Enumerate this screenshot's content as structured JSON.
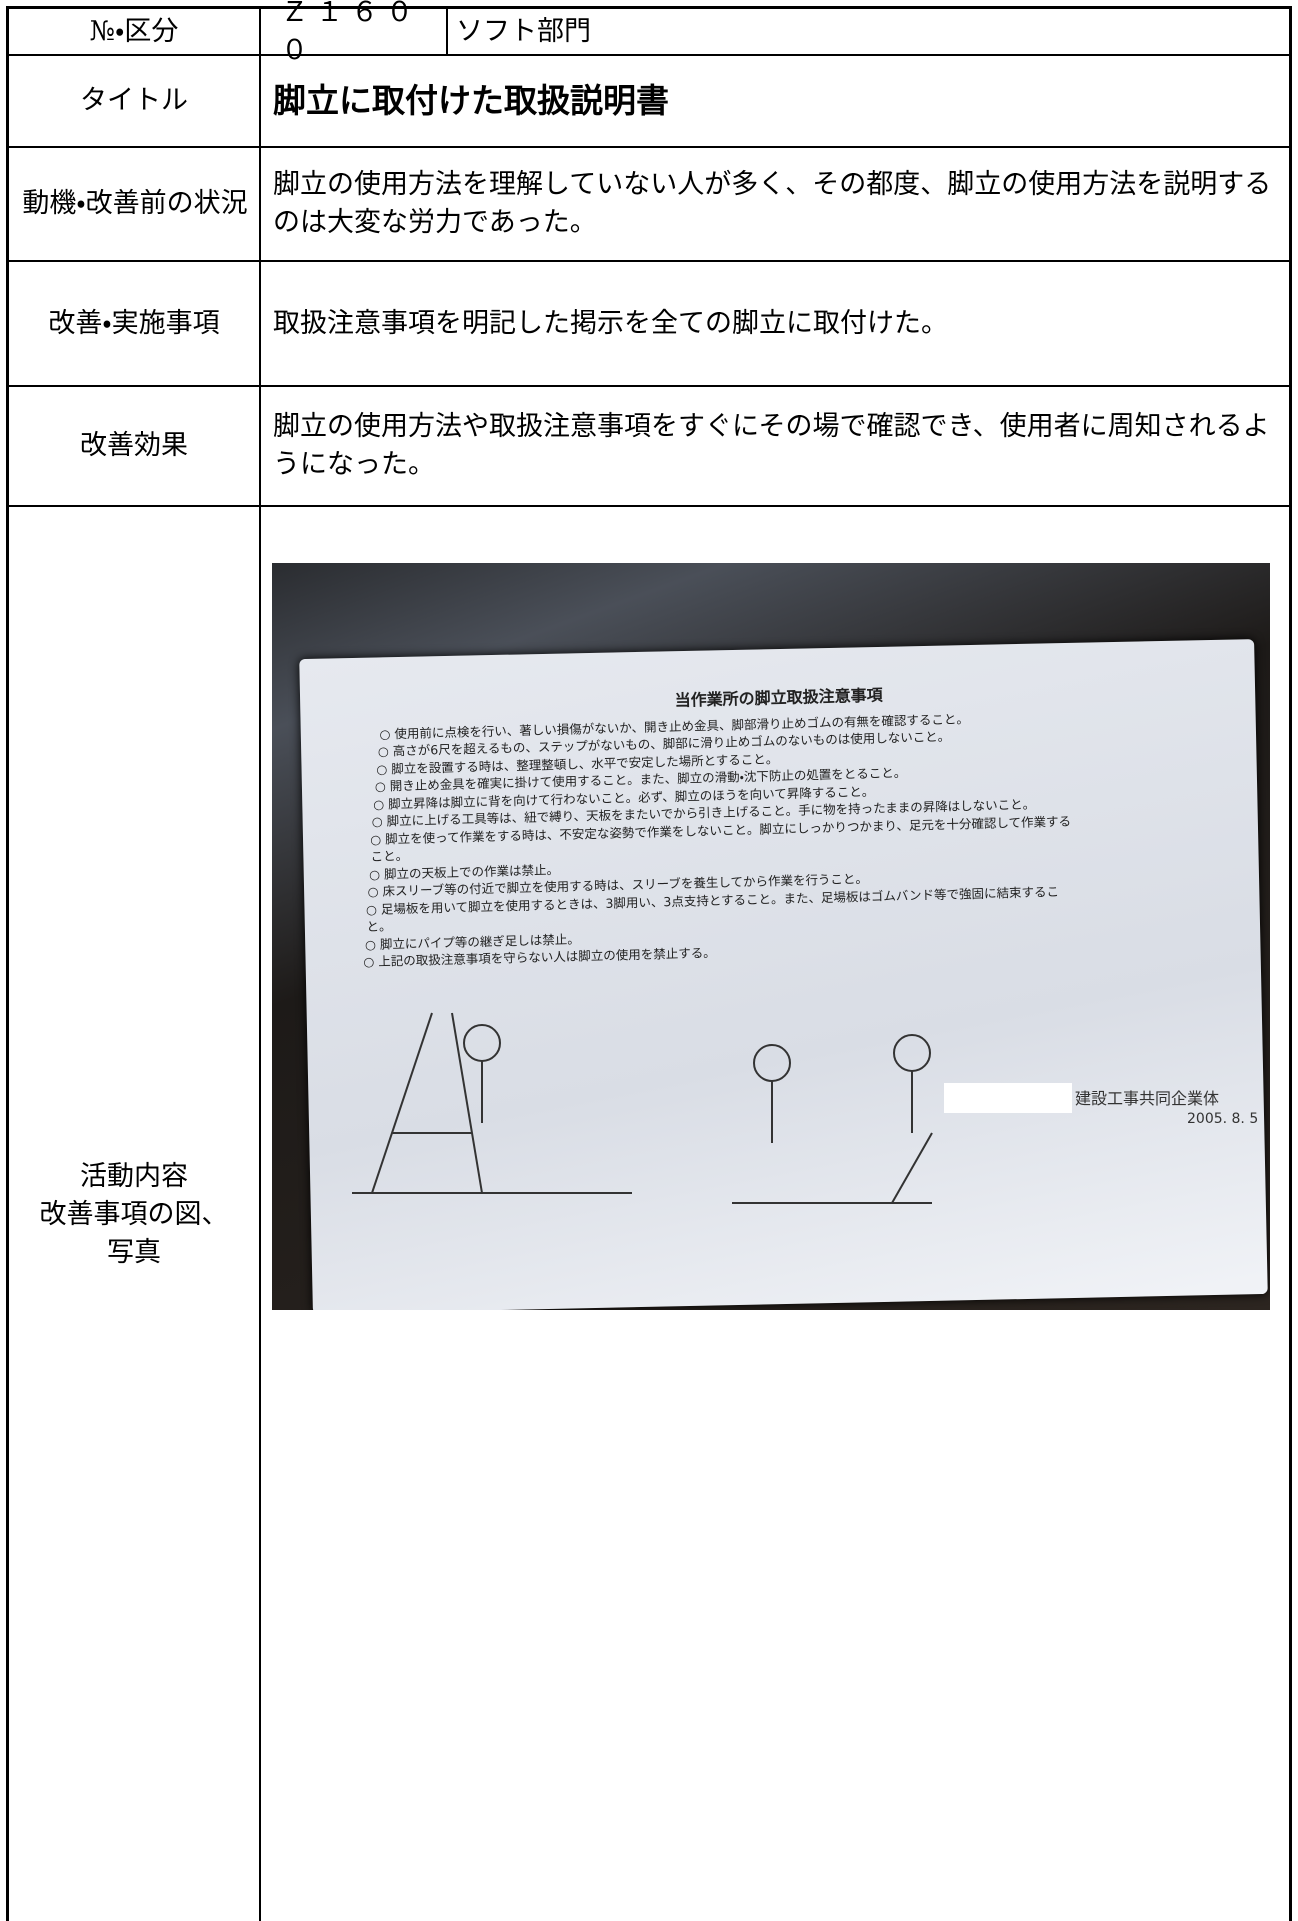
{
  "header": {
    "label": "№・区分",
    "number": "Ｚ１６００",
    "category": "ソフト部門"
  },
  "rows": [
    {
      "label": "タイトル",
      "content": "脚立に取付けた取扱説明書"
    },
    {
      "label": "動機・改善前の状況",
      "content": "脚立の使用方法を理解していない人が多く、その都度、脚立の使用方法を説明するのは大変な労力であった。"
    },
    {
      "label": "改善・実施事項",
      "content": "取扱注意事項を明記した掲示を全ての脚立に取付けた。"
    },
    {
      "label": "改善効果",
      "content": "脚立の使用方法や取扱注意事項をすぐにその場で確認でき、使用者に周知されるようになった。"
    }
  ],
  "activity": {
    "label_lines": [
      "活動内容",
      "改善事項の図、",
      "写真"
    ],
    "photo": {
      "sign_title": "当作業所の脚立取扱注意事項",
      "items": [
        "○ 使用前に点検を行い、著しい損傷がないか、開き止め金具、脚部滑り止めゴムの有無を確認すること。",
        "○ 高さが6尺を超えるもの、ステップがないもの、脚部に滑り止めゴムのないものは使用しないこと。",
        "○ 脚立を設置する時は、整理整頓し、水平で安定した場所とすること。",
        "○ 開き止め金具を確実に掛けて使用すること。また、脚立の滑動・沈下防止の処置をとること。",
        "○ 脚立昇降は脚立に背を向けて行わないこと。必ず、脚立のほうを向いて昇降すること。",
        "○ 脚立に上げる工具等は、紐で縛り、天板をまたいでから引き上げること。手に物を持ったままの昇降はしないこと。",
        "○ 脚立を使って作業をする時は、不安定な姿勢で作業をしないこと。脚立にしっかりつかまり、足元を十分確認して作業すること。",
        "○ 脚立の天板上での作業は禁止。",
        "○ 床スリーブ等の付近で脚立を使用する時は、スリーブを養生してから作業を行うこと。",
        "○ 足場板を用いて脚立を使用するときは、3脚用い、3点支持とすること。また、足場板はゴムバンド等で強固に結束すること。",
        "○ 脚立にパイプ等の継ぎ足しは禁止。",
        "○ 上記の取扱注意事項を守らない人は脚立の使用を禁止する。"
      ],
      "sign_footer": "建設工事共同企業体",
      "sign_date": "2005. 8. 5"
    }
  }
}
